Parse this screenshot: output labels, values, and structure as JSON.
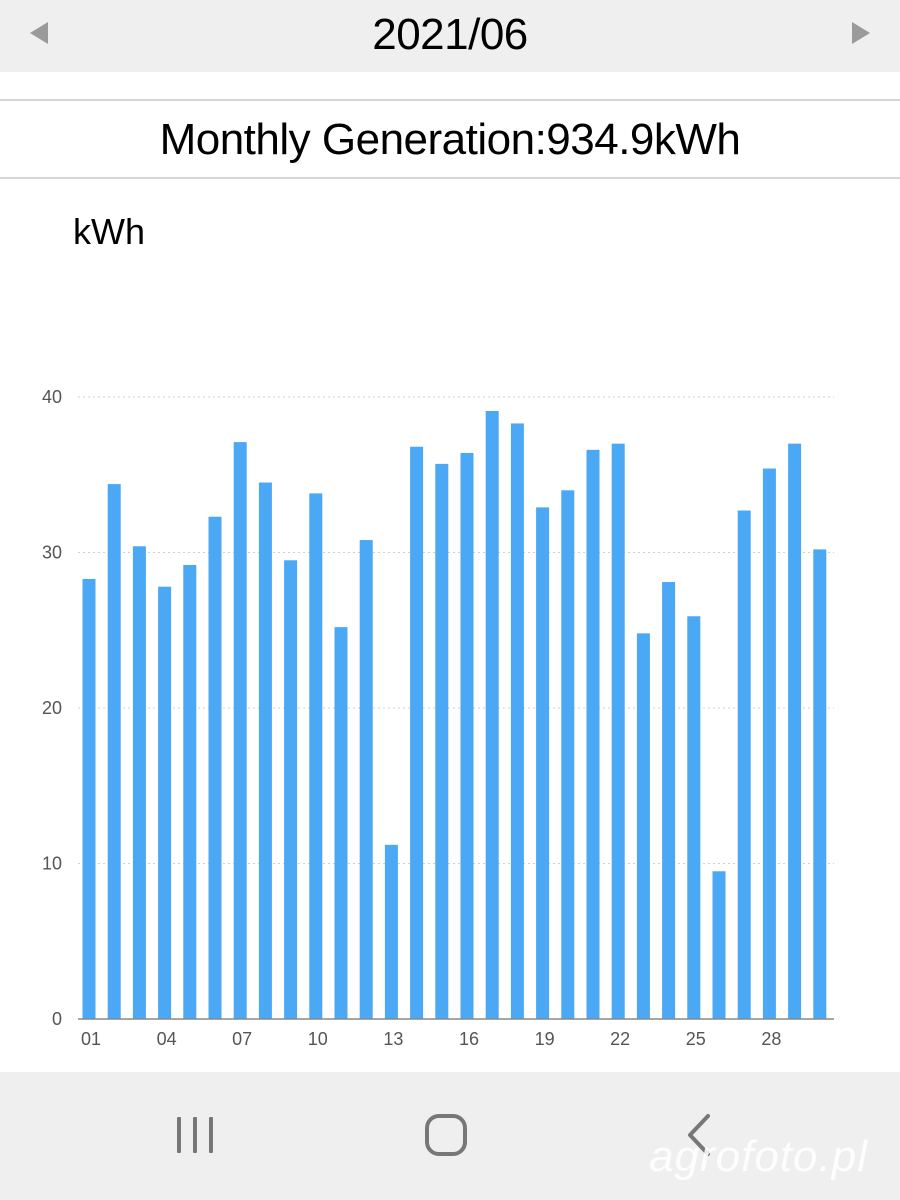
{
  "header": {
    "period": "2021/06"
  },
  "summary": {
    "text": "Monthly Generation:934.9kWh"
  },
  "chart_data": {
    "type": "bar",
    "unit_label": "kWh",
    "ylim": [
      0,
      40
    ],
    "yticks": [
      0,
      10,
      20,
      30,
      40
    ],
    "grid": true,
    "bar_color": "#4aa8f5",
    "categories": [
      "01",
      "02",
      "03",
      "04",
      "05",
      "06",
      "07",
      "08",
      "09",
      "10",
      "11",
      "12",
      "13",
      "14",
      "15",
      "16",
      "17",
      "18",
      "19",
      "20",
      "21",
      "22",
      "23",
      "24",
      "25",
      "26",
      "27",
      "28",
      "29",
      "30"
    ],
    "xtick_labels": [
      "01",
      "04",
      "07",
      "10",
      "13",
      "16",
      "19",
      "22",
      "25",
      "28"
    ],
    "values": [
      28.3,
      34.4,
      30.4,
      27.8,
      29.2,
      32.3,
      37.1,
      34.5,
      29.5,
      33.8,
      25.2,
      30.8,
      11.2,
      36.8,
      35.7,
      36.4,
      39.1,
      38.3,
      32.9,
      34.0,
      36.6,
      37.0,
      24.8,
      28.1,
      25.9,
      9.5,
      32.7,
      35.4,
      37.0,
      30.2
    ]
  },
  "watermark": {
    "text": "agrofoto.pl"
  },
  "system_nav": {
    "recent": "recent-apps",
    "home": "home",
    "back": "back"
  }
}
